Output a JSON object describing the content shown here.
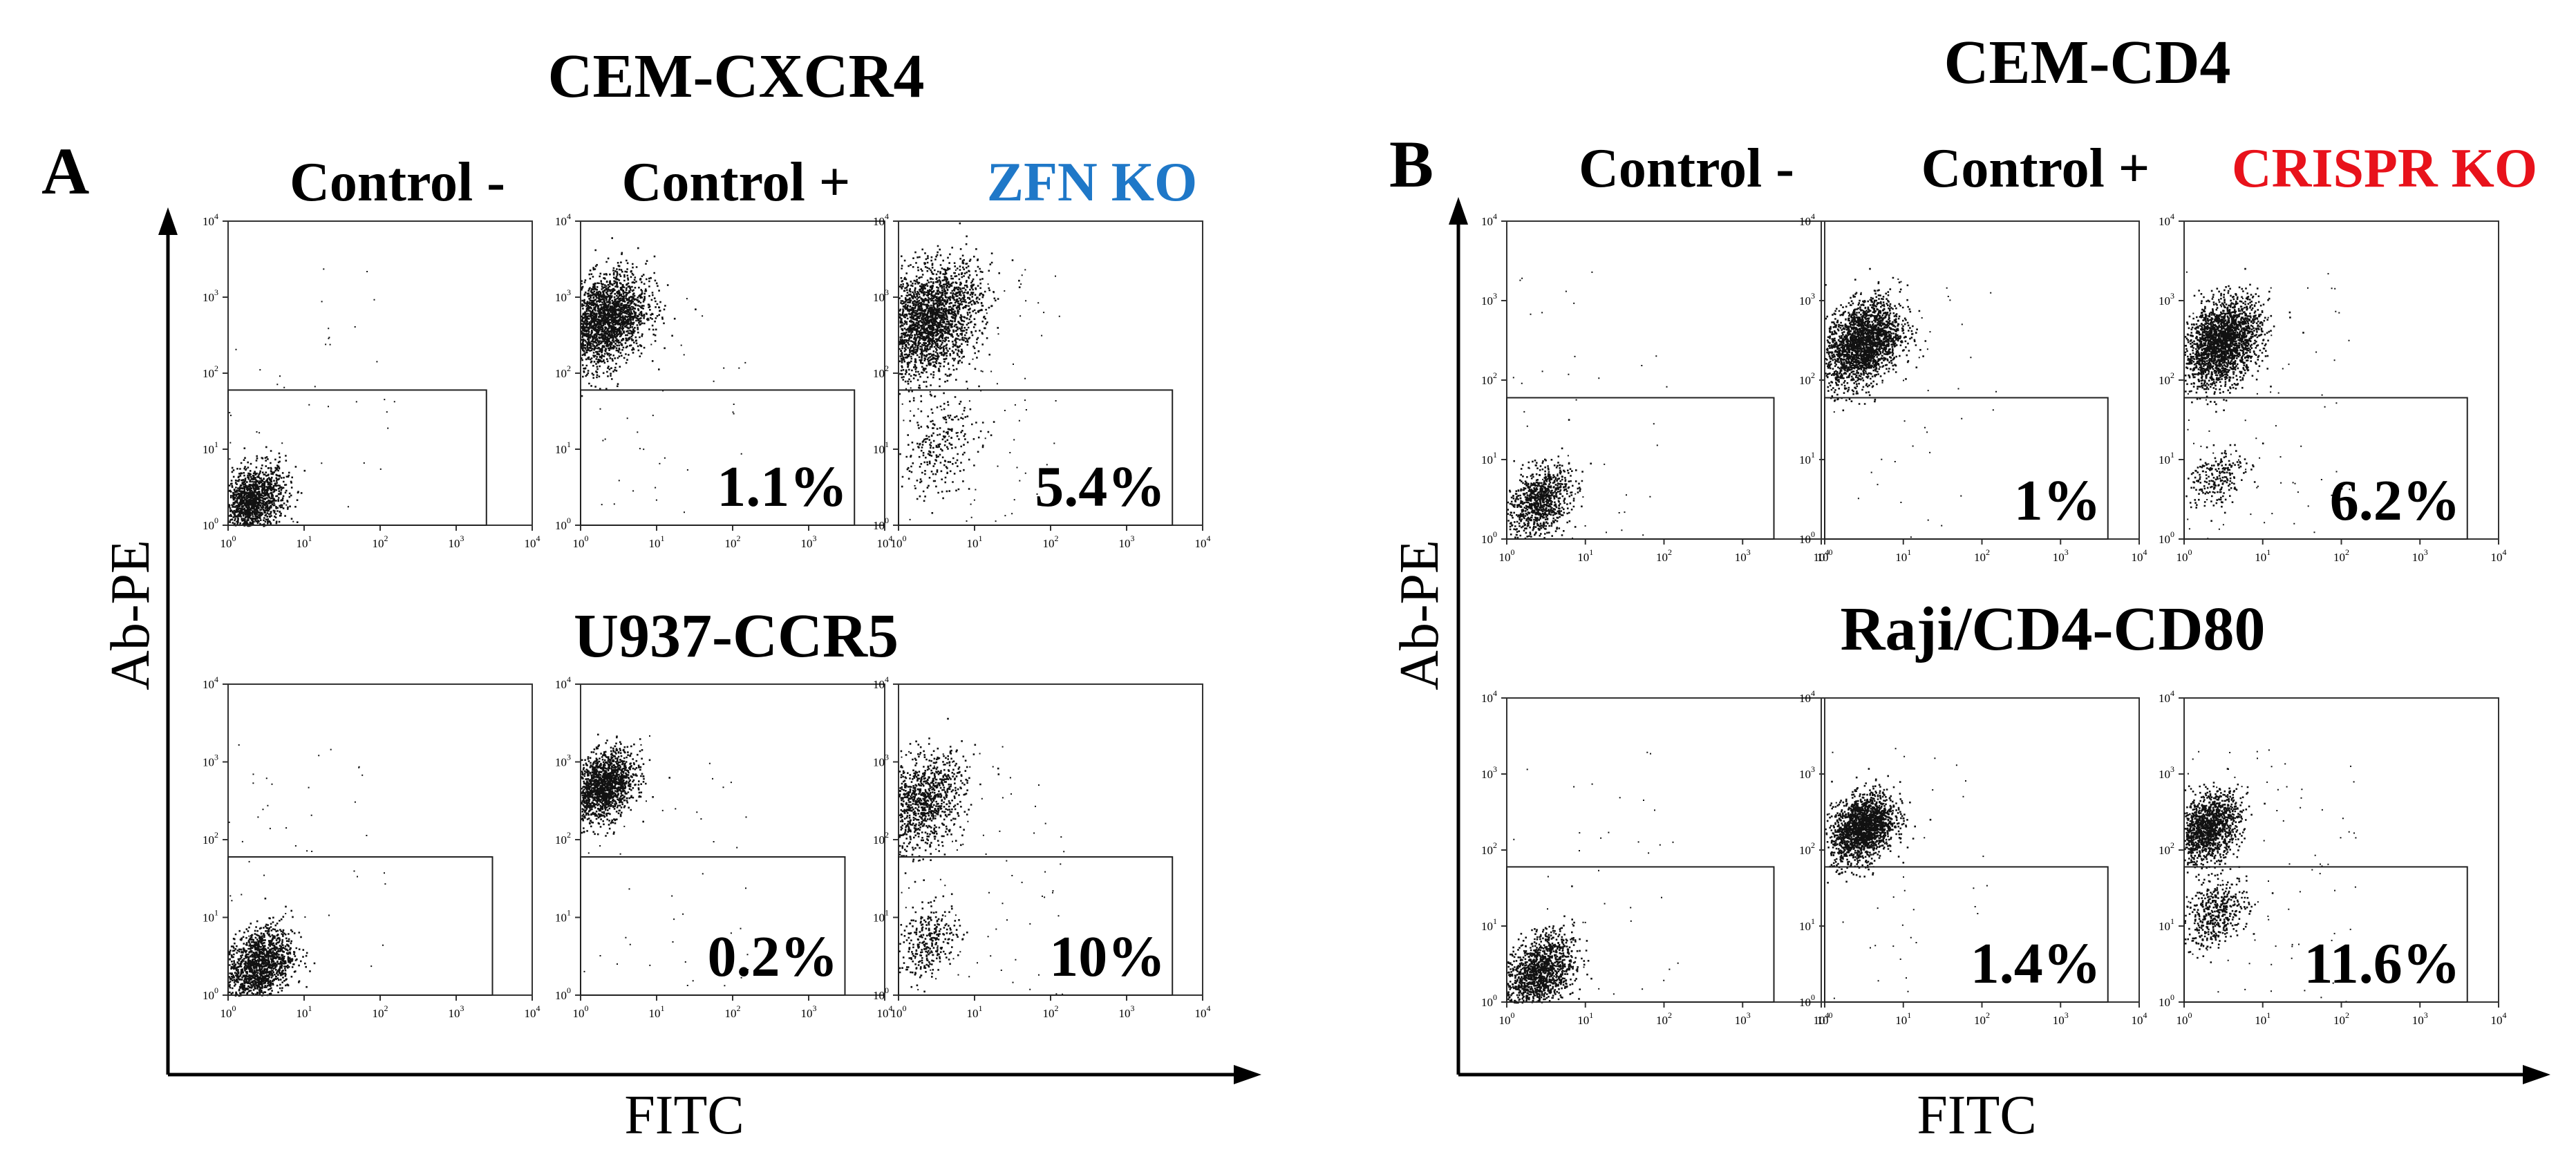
{
  "chart_data": {
    "type": "scatter",
    "description_text": {
      "x_axis_label": "FITC",
      "y_axis_label": "Ab-PE",
      "tick_base": "10",
      "tick_exponents": [
        "0",
        "1",
        "2",
        "3",
        "4"
      ]
    },
    "axis_scale": "log",
    "xlim": [
      1,
      10000
    ],
    "ylim": [
      1,
      10000
    ],
    "panels": [
      {
        "letter": "A",
        "title": "CEM-CXCR4",
        "second_title": "U937-CCR5",
        "columns": [
          {
            "label": "Control -",
            "color": "#000000"
          },
          {
            "label": "Control +",
            "color": "#000000"
          },
          {
            "label": "ZFN KO",
            "color": "#1f78c8"
          }
        ],
        "rows": [
          {
            "cell_line": "CEM-CXCR4",
            "plots": [
              {
                "condition": "Control -",
                "percent_label": "",
                "populations": [
                  {
                    "x": 2,
                    "y": 2,
                    "spread": 0.22,
                    "n": 1400
                  }
                ],
                "gate_y": 60,
                "gate_x": 2500
              },
              {
                "condition": "Control +",
                "percent_label": "1.1%",
                "populations": [
                  {
                    "x": 2,
                    "y": 500,
                    "spread": 0.28,
                    "n": 2200
                  }
                ],
                "gate_y": 60,
                "gate_x": 4000
              },
              {
                "condition": "ZFN KO",
                "percent_label": "5.4%",
                "populations": [
                  {
                    "x": 2.5,
                    "y": 500,
                    "spread": 0.33,
                    "n": 2300
                  },
                  {
                    "x": 3,
                    "y": 10,
                    "spread": 0.28,
                    "n": 260
                  }
                ],
                "gate_y": 60,
                "gate_x": 4000
              }
            ]
          },
          {
            "cell_line": "U937-CCR5",
            "plots": [
              {
                "condition": "Control -",
                "percent_label": "",
                "populations": [
                  {
                    "x": 2.5,
                    "y": 2.5,
                    "spread": 0.22,
                    "n": 1400
                  }
                ],
                "gate_y": 60,
                "gate_x": 3000
              },
              {
                "condition": "Control +",
                "percent_label": "0.2%",
                "populations": [
                  {
                    "x": 2,
                    "y": 500,
                    "spread": 0.2,
                    "n": 1500
                  }
                ],
                "gate_y": 60,
                "gate_x": 3000
              },
              {
                "condition": "ZFN KO",
                "percent_label": "10%",
                "populations": [
                  {
                    "x": 2,
                    "y": 300,
                    "spread": 0.28,
                    "n": 1000
                  },
                  {
                    "x": 2.5,
                    "y": 5,
                    "spread": 0.2,
                    "n": 300
                  }
                ],
                "gate_y": 60,
                "gate_x": 4000
              }
            ]
          }
        ]
      },
      {
        "letter": "B",
        "title": "CEM-CD4",
        "second_title": "Raji/CD4-CD80",
        "columns": [
          {
            "label": "Control -",
            "color": "#000000"
          },
          {
            "label": "Control +",
            "color": "#000000"
          },
          {
            "label": "CRISPR KO",
            "color": "#e8121b"
          }
        ],
        "rows": [
          {
            "cell_line": "CEM-CD4",
            "plots": [
              {
                "condition": "Control -",
                "percent_label": "",
                "populations": [
                  {
                    "x": 2.5,
                    "y": 3,
                    "spread": 0.2,
                    "n": 900
                  }
                ],
                "gate_y": 60,
                "gate_x": 2500
              },
              {
                "condition": "Control +",
                "percent_label": "1%",
                "populations": [
                  {
                    "x": 3,
                    "y": 300,
                    "spread": 0.24,
                    "n": 2200
                  }
                ],
                "gate_y": 60,
                "gate_x": 4000
              },
              {
                "condition": "CRISPR KO",
                "percent_label": "6.2%",
                "populations": [
                  {
                    "x": 3,
                    "y": 300,
                    "spread": 0.24,
                    "n": 2200
                  },
                  {
                    "x": 2.5,
                    "y": 6,
                    "spread": 0.18,
                    "n": 220
                  }
                ],
                "gate_y": 60,
                "gate_x": 4000
              }
            ]
          },
          {
            "cell_line": "Raji/CD4-CD80",
            "plots": [
              {
                "condition": "Control -",
                "percent_label": "",
                "populations": [
                  {
                    "x": 2.5,
                    "y": 2.5,
                    "spread": 0.22,
                    "n": 1300
                  }
                ],
                "gate_y": 60,
                "gate_x": 2500
              },
              {
                "condition": "Control +",
                "percent_label": "1.4%",
                "populations": [
                  {
                    "x": 3,
                    "y": 200,
                    "spread": 0.2,
                    "n": 1800
                  }
                ],
                "gate_y": 60,
                "gate_x": 4000
              },
              {
                "condition": "CRISPR KO",
                "percent_label": "11.6%",
                "populations": [
                  {
                    "x": 2,
                    "y": 200,
                    "spread": 0.2,
                    "n": 1300
                  },
                  {
                    "x": 2.5,
                    "y": 15,
                    "spread": 0.2,
                    "n": 450
                  }
                ],
                "gate_y": 60,
                "gate_x": 4000
              }
            ]
          }
        ]
      }
    ]
  }
}
